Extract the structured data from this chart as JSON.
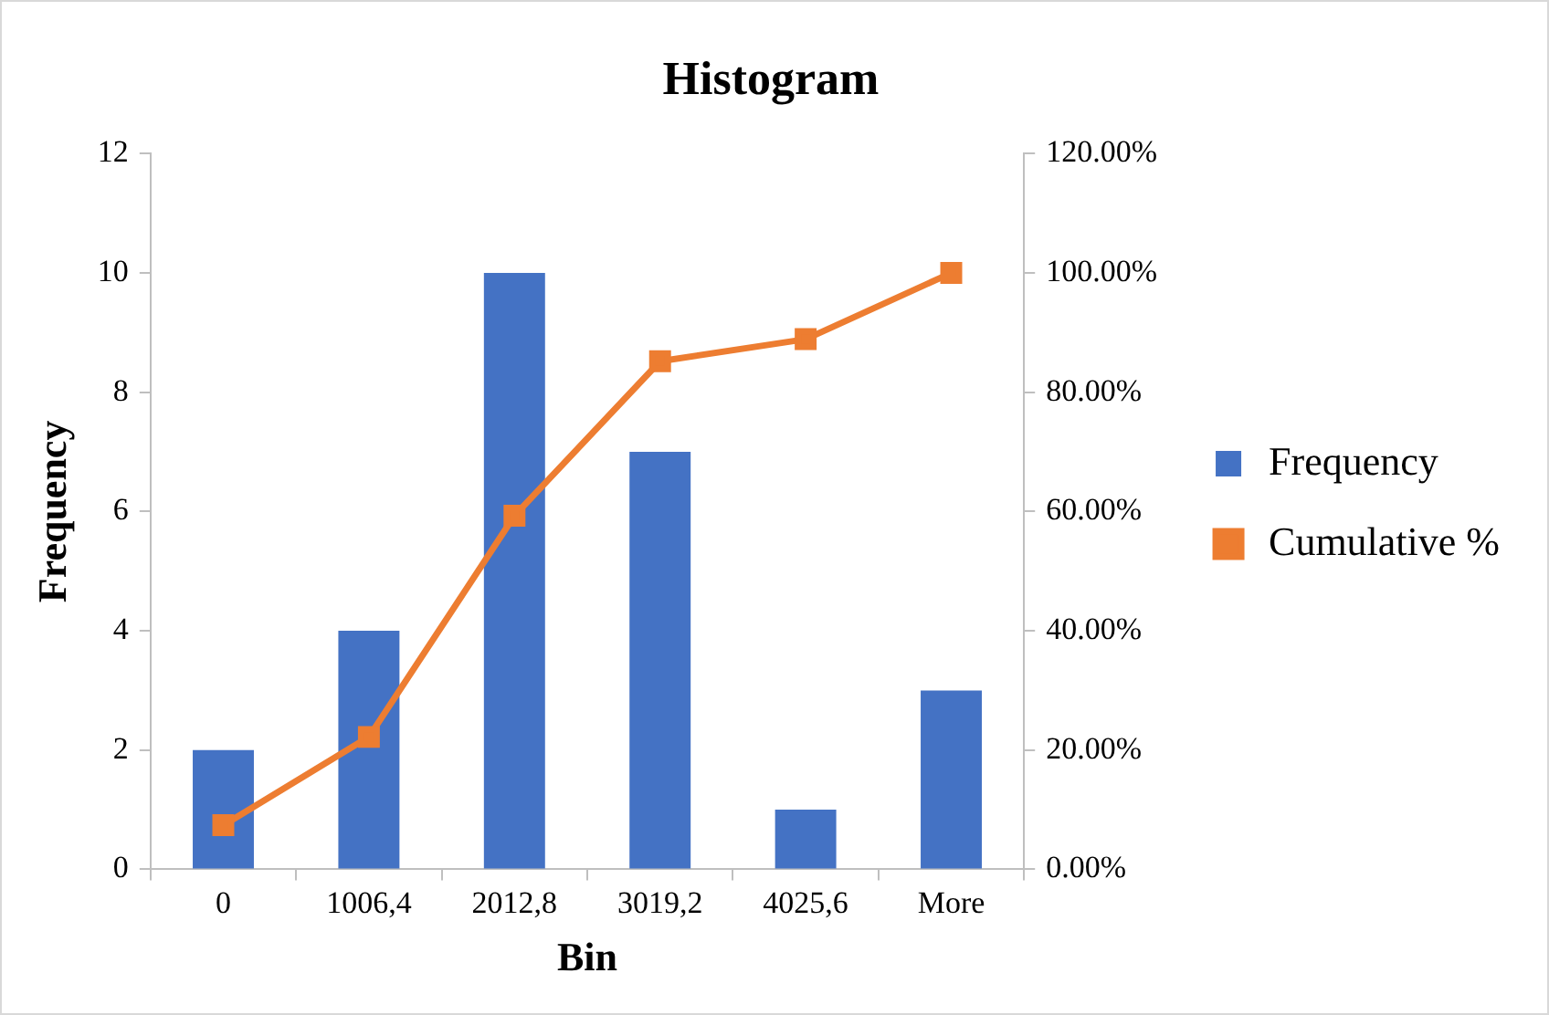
{
  "chart_data": {
    "type": "bar",
    "title": "Histogram",
    "xlabel": "Bin",
    "ylabel": "Frequency",
    "categories": [
      "0",
      "1006,4",
      "2012,8",
      "3019,2",
      "4025,6",
      "More"
    ],
    "series": [
      {
        "name": "Frequency",
        "color": "#4472c4",
        "values": [
          2,
          4,
          10,
          7,
          1,
          3
        ]
      },
      {
        "name": "Cumulative %",
        "type": "line",
        "axis": "y2",
        "color": "#ed7d31",
        "values": [
          7.4,
          22.2,
          59.3,
          85.2,
          88.9,
          100
        ]
      }
    ],
    "ylim": [
      0,
      12
    ],
    "yticks": [
      0,
      2,
      4,
      6,
      8,
      10,
      12
    ],
    "y2lim": [
      0,
      120
    ],
    "y2ticks": [
      {
        "value": 0,
        "label": "0.00%"
      },
      {
        "value": 20,
        "label": "20.00%"
      },
      {
        "value": 40,
        "label": "40.00%"
      },
      {
        "value": 60,
        "label": "60.00%"
      },
      {
        "value": 80,
        "label": "80.00%"
      },
      {
        "value": 100,
        "label": "100.00%"
      },
      {
        "value": 120,
        "label": "120.00%"
      }
    ],
    "grid": false,
    "legend": "right",
    "marker": "square",
    "line_style": "solid"
  }
}
